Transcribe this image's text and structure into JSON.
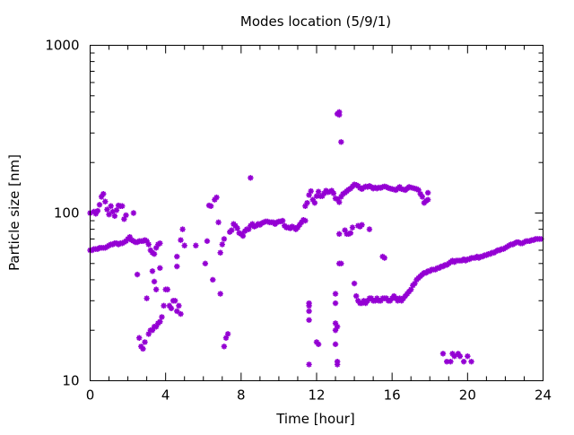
{
  "chart_data": {
    "type": "scatter",
    "title": "Modes location (5/9/1)",
    "xlabel": "Time [hour]",
    "ylabel": "Particle size [nm]",
    "xlim": [
      0,
      24
    ],
    "ylim": [
      10,
      1000
    ],
    "y_scale": "log",
    "x_ticks": [
      0,
      4,
      8,
      12,
      16,
      20,
      24
    ],
    "x_tick_labels": [
      "0",
      "4",
      "8",
      "12",
      "16",
      "20",
      "24"
    ],
    "y_ticks": [
      10,
      100,
      1000
    ],
    "y_tick_labels": [
      "10",
      "100",
      "1000"
    ],
    "grid": false,
    "marker": "asterisk",
    "color": "#9400d3",
    "points": [
      [
        0.0,
        60
      ],
      [
        0.1,
        60
      ],
      [
        0.2,
        61
      ],
      [
        0.3,
        61
      ],
      [
        0.4,
        61
      ],
      [
        0.5,
        62
      ],
      [
        0.6,
        62
      ],
      [
        0.7,
        62
      ],
      [
        0.8,
        62
      ],
      [
        0.9,
        63
      ],
      [
        1.0,
        64
      ],
      [
        1.1,
        65
      ],
      [
        1.2,
        65
      ],
      [
        1.3,
        66
      ],
      [
        1.4,
        66
      ],
      [
        1.5,
        65
      ],
      [
        1.6,
        66
      ],
      [
        1.7,
        66
      ],
      [
        1.8,
        67
      ],
      [
        1.9,
        68
      ],
      [
        2.0,
        70
      ],
      [
        2.1,
        72
      ],
      [
        2.2,
        69
      ],
      [
        2.3,
        68
      ],
      [
        2.4,
        67
      ],
      [
        2.5,
        67
      ],
      [
        2.6,
        68
      ],
      [
        2.7,
        68
      ],
      [
        2.8,
        68
      ],
      [
        2.9,
        69
      ],
      [
        3.0,
        68
      ],
      [
        3.1,
        65
      ],
      [
        3.2,
        60
      ],
      [
        3.3,
        58
      ],
      [
        3.4,
        57
      ],
      [
        3.5,
        62
      ],
      [
        3.6,
        65
      ],
      [
        3.7,
        66
      ],
      [
        0.0,
        100
      ],
      [
        0.2,
        102
      ],
      [
        0.3,
        99
      ],
      [
        0.4,
        103
      ],
      [
        0.5,
        112
      ],
      [
        0.6,
        125
      ],
      [
        0.7,
        130
      ],
      [
        0.8,
        117
      ],
      [
        0.9,
        105
      ],
      [
        1.0,
        98
      ],
      [
        1.1,
        110
      ],
      [
        1.2,
        102
      ],
      [
        1.3,
        96
      ],
      [
        1.4,
        104
      ],
      [
        1.5,
        111
      ],
      [
        1.6,
        110
      ],
      [
        1.7,
        110
      ],
      [
        1.8,
        92
      ],
      [
        1.9,
        97
      ],
      [
        2.3,
        100
      ],
      [
        2.5,
        43
      ],
      [
        2.6,
        18
      ],
      [
        2.7,
        16
      ],
      [
        2.8,
        15.5
      ],
      [
        2.9,
        17
      ],
      [
        3.0,
        31
      ],
      [
        3.1,
        19
      ],
      [
        3.2,
        20
      ],
      [
        3.3,
        20
      ],
      [
        3.4,
        21
      ],
      [
        3.5,
        21
      ],
      [
        3.6,
        22
      ],
      [
        3.7,
        22.5
      ],
      [
        3.8,
        24
      ],
      [
        3.9,
        28
      ],
      [
        4.0,
        35
      ],
      [
        4.1,
        35
      ],
      [
        4.2,
        28
      ],
      [
        4.3,
        27
      ],
      [
        4.4,
        30
      ],
      [
        4.5,
        30
      ],
      [
        4.6,
        26
      ],
      [
        4.7,
        28
      ],
      [
        4.8,
        25
      ],
      [
        3.3,
        45
      ],
      [
        3.4,
        39
      ],
      [
        3.5,
        35
      ],
      [
        3.7,
        47
      ],
      [
        4.6,
        48
      ],
      [
        4.6,
        55
      ],
      [
        4.8,
        69
      ],
      [
        4.9,
        80
      ],
      [
        5.0,
        64
      ],
      [
        5.6,
        64
      ],
      [
        6.1,
        50
      ],
      [
        6.2,
        68
      ],
      [
        6.3,
        111
      ],
      [
        6.4,
        110
      ],
      [
        6.5,
        40
      ],
      [
        6.6,
        120
      ],
      [
        6.7,
        124
      ],
      [
        6.8,
        88
      ],
      [
        6.9,
        58
      ],
      [
        6.9,
        33
      ],
      [
        7.0,
        65
      ],
      [
        7.1,
        70
      ],
      [
        7.1,
        16
      ],
      [
        7.2,
        18
      ],
      [
        7.3,
        19
      ],
      [
        7.4,
        77
      ],
      [
        7.5,
        79
      ],
      [
        7.6,
        86
      ],
      [
        7.7,
        84
      ],
      [
        7.8,
        81
      ],
      [
        7.9,
        76
      ],
      [
        8.0,
        75
      ],
      [
        8.1,
        73
      ],
      [
        8.2,
        78
      ],
      [
        8.3,
        80
      ],
      [
        8.4,
        80
      ],
      [
        8.5,
        84
      ],
      [
        8.6,
        86
      ],
      [
        8.7,
        83
      ],
      [
        8.8,
        84
      ],
      [
        8.9,
        86
      ],
      [
        9.0,
        85
      ],
      [
        9.1,
        87
      ],
      [
        9.2,
        88
      ],
      [
        9.3,
        89
      ],
      [
        9.4,
        89
      ],
      [
        9.5,
        88
      ],
      [
        9.6,
        88
      ],
      [
        9.7,
        88
      ],
      [
        9.8,
        86
      ],
      [
        9.9,
        88
      ],
      [
        10.0,
        89
      ],
      [
        10.1,
        89
      ],
      [
        10.2,
        90
      ],
      [
        10.3,
        84
      ],
      [
        10.4,
        82
      ],
      [
        10.5,
        82
      ],
      [
        10.6,
        81
      ],
      [
        10.7,
        83
      ],
      [
        10.8,
        82
      ],
      [
        10.9,
        80
      ],
      [
        11.0,
        82
      ],
      [
        11.1,
        85
      ],
      [
        11.2,
        88
      ],
      [
        11.3,
        91
      ],
      [
        11.4,
        90
      ],
      [
        8.5,
        162
      ],
      [
        11.4,
        110
      ],
      [
        11.5,
        115
      ],
      [
        11.6,
        128
      ],
      [
        11.7,
        135
      ],
      [
        11.8,
        120
      ],
      [
        11.9,
        115
      ],
      [
        12.0,
        126
      ],
      [
        12.1,
        134
      ],
      [
        12.2,
        126
      ],
      [
        12.3,
        126
      ],
      [
        12.4,
        131
      ],
      [
        12.5,
        136
      ],
      [
        12.6,
        133
      ],
      [
        12.7,
        134
      ],
      [
        12.8,
        136
      ],
      [
        12.9,
        131
      ],
      [
        13.0,
        122
      ],
      [
        13.1,
        121
      ],
      [
        13.2,
        116
      ],
      [
        13.3,
        125
      ],
      [
        13.4,
        130
      ],
      [
        13.5,
        132
      ],
      [
        13.6,
        135
      ],
      [
        13.7,
        138
      ],
      [
        13.8,
        140
      ],
      [
        13.9,
        144
      ],
      [
        14.0,
        148
      ],
      [
        14.1,
        147
      ],
      [
        14.2,
        145
      ],
      [
        14.3,
        141
      ],
      [
        14.4,
        139
      ],
      [
        14.5,
        142
      ],
      [
        14.6,
        144
      ],
      [
        14.7,
        143
      ],
      [
        14.8,
        145
      ],
      [
        14.9,
        143
      ],
      [
        15.0,
        140
      ],
      [
        15.1,
        142
      ],
      [
        15.2,
        140
      ],
      [
        15.3,
        142
      ],
      [
        15.4,
        141
      ],
      [
        15.5,
        143
      ],
      [
        15.6,
        144
      ],
      [
        15.7,
        143
      ],
      [
        15.8,
        141
      ],
      [
        15.9,
        140
      ],
      [
        16.0,
        139
      ],
      [
        16.1,
        138
      ],
      [
        16.2,
        137
      ],
      [
        16.3,
        140
      ],
      [
        16.4,
        143
      ],
      [
        16.5,
        139
      ],
      [
        16.6,
        138
      ],
      [
        16.7,
        137
      ],
      [
        16.8,
        140
      ],
      [
        16.9,
        143
      ],
      [
        17.0,
        142
      ],
      [
        17.1,
        141
      ],
      [
        17.2,
        140
      ],
      [
        17.3,
        139
      ],
      [
        17.4,
        137
      ],
      [
        17.5,
        130
      ],
      [
        17.6,
        125
      ],
      [
        17.7,
        115
      ],
      [
        17.8,
        118
      ],
      [
        17.9,
        120
      ],
      [
        17.9,
        132
      ],
      [
        11.6,
        26
      ],
      [
        11.6,
        28
      ],
      [
        11.6,
        29
      ],
      [
        11.6,
        23
      ],
      [
        11.6,
        12.5
      ],
      [
        12.0,
        17
      ],
      [
        12.1,
        16.5
      ],
      [
        13.0,
        29
      ],
      [
        13.0,
        33
      ],
      [
        13.0,
        22
      ],
      [
        13.0,
        20
      ],
      [
        13.0,
        16.5
      ],
      [
        13.1,
        13
      ],
      [
        13.1,
        12.5
      ],
      [
        13.1,
        21
      ],
      [
        13.1,
        390
      ],
      [
        13.2,
        400
      ],
      [
        13.2,
        385
      ],
      [
        13.3,
        265
      ],
      [
        13.2,
        50
      ],
      [
        13.2,
        75
      ],
      [
        13.3,
        50
      ],
      [
        13.5,
        79
      ],
      [
        13.6,
        75
      ],
      [
        13.7,
        75
      ],
      [
        13.8,
        76
      ],
      [
        13.9,
        82
      ],
      [
        14.2,
        84
      ],
      [
        14.3,
        83
      ],
      [
        14.4,
        85
      ],
      [
        14.8,
        80
      ],
      [
        15.5,
        55
      ],
      [
        15.6,
        54
      ],
      [
        14.0,
        38
      ],
      [
        14.1,
        32
      ],
      [
        14.2,
        30
      ],
      [
        14.3,
        29
      ],
      [
        14.4,
        29
      ],
      [
        14.5,
        30
      ],
      [
        14.6,
        29
      ],
      [
        14.7,
        30
      ],
      [
        14.8,
        31
      ],
      [
        14.9,
        31
      ],
      [
        15.0,
        30
      ],
      [
        15.1,
        30
      ],
      [
        15.2,
        31
      ],
      [
        15.3,
        30
      ],
      [
        15.4,
        30
      ],
      [
        15.5,
        31
      ],
      [
        15.6,
        31
      ],
      [
        15.7,
        31
      ],
      [
        15.8,
        30
      ],
      [
        15.9,
        30
      ],
      [
        16.0,
        31
      ],
      [
        16.1,
        32
      ],
      [
        16.2,
        31
      ],
      [
        16.3,
        30
      ],
      [
        16.4,
        31
      ],
      [
        16.5,
        30
      ],
      [
        16.6,
        31
      ],
      [
        16.7,
        32
      ],
      [
        16.8,
        33
      ],
      [
        16.9,
        34
      ],
      [
        17.0,
        35
      ],
      [
        17.1,
        37
      ],
      [
        17.2,
        38
      ],
      [
        17.3,
        40
      ],
      [
        17.4,
        41
      ],
      [
        17.5,
        42
      ],
      [
        17.6,
        43
      ],
      [
        17.7,
        44
      ],
      [
        17.8,
        44
      ],
      [
        17.9,
        45
      ],
      [
        18.0,
        45
      ],
      [
        18.1,
        46
      ],
      [
        18.2,
        46
      ],
      [
        18.3,
        46
      ],
      [
        18.4,
        47
      ],
      [
        18.5,
        47
      ],
      [
        18.6,
        48
      ],
      [
        18.7,
        48
      ],
      [
        18.8,
        49
      ],
      [
        18.9,
        49
      ],
      [
        19.0,
        50
      ],
      [
        19.1,
        51
      ],
      [
        19.2,
        52
      ],
      [
        19.3,
        51
      ],
      [
        19.4,
        52
      ],
      [
        19.5,
        52
      ],
      [
        19.6,
        52
      ],
      [
        19.7,
        52
      ],
      [
        19.8,
        53
      ],
      [
        19.9,
        52
      ],
      [
        20.0,
        53
      ],
      [
        20.1,
        53
      ],
      [
        20.2,
        54
      ],
      [
        20.3,
        54
      ],
      [
        20.4,
        54
      ],
      [
        20.5,
        55
      ],
      [
        20.6,
        54
      ],
      [
        20.7,
        55
      ],
      [
        20.8,
        55
      ],
      [
        20.9,
        56
      ],
      [
        21.0,
        56
      ],
      [
        21.1,
        57
      ],
      [
        21.2,
        57
      ],
      [
        21.3,
        58
      ],
      [
        21.4,
        58
      ],
      [
        21.5,
        59
      ],
      [
        21.6,
        60
      ],
      [
        21.7,
        60
      ],
      [
        21.8,
        61
      ],
      [
        21.9,
        61
      ],
      [
        22.0,
        62
      ],
      [
        22.1,
        63
      ],
      [
        22.2,
        64
      ],
      [
        22.3,
        65
      ],
      [
        22.4,
        65
      ],
      [
        22.5,
        66
      ],
      [
        22.6,
        67
      ],
      [
        22.7,
        67
      ],
      [
        22.8,
        66
      ],
      [
        22.9,
        66
      ],
      [
        23.0,
        67
      ],
      [
        23.1,
        68
      ],
      [
        23.2,
        68
      ],
      [
        23.3,
        68
      ],
      [
        23.4,
        69
      ],
      [
        23.5,
        69
      ],
      [
        23.6,
        70
      ],
      [
        23.7,
        70
      ],
      [
        23.8,
        70
      ],
      [
        23.9,
        70
      ],
      [
        18.7,
        14.5
      ],
      [
        18.9,
        13
      ],
      [
        19.1,
        13
      ],
      [
        19.2,
        14.5
      ],
      [
        19.3,
        14
      ],
      [
        19.5,
        14.5
      ],
      [
        19.6,
        14
      ],
      [
        19.8,
        13
      ],
      [
        20.0,
        14
      ],
      [
        20.2,
        13
      ]
    ]
  }
}
